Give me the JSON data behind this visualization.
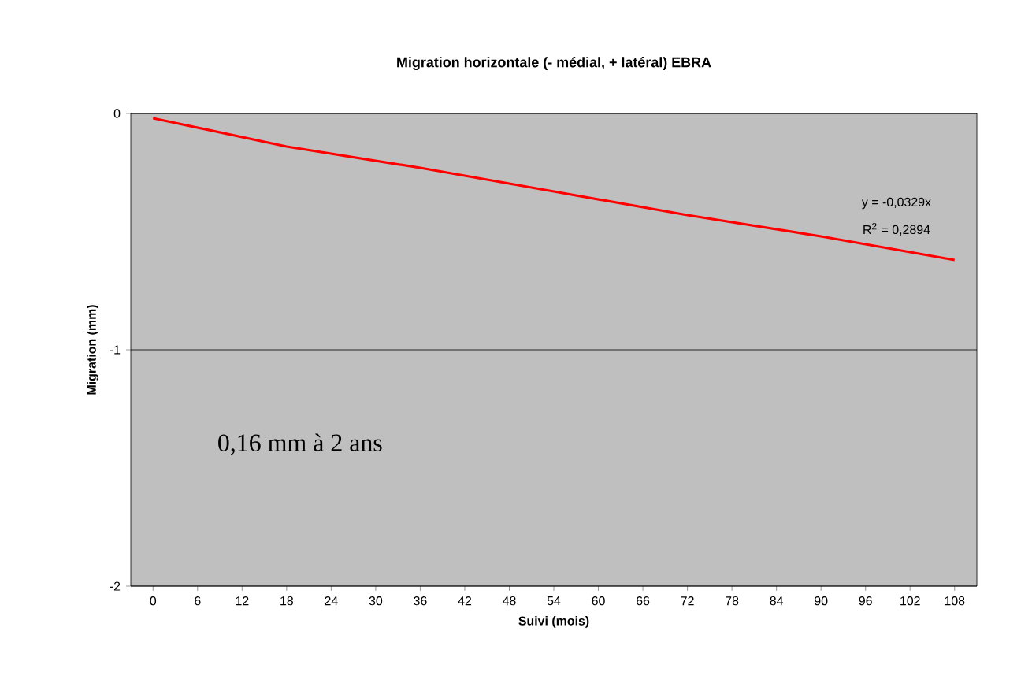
{
  "chart_data": {
    "type": "line",
    "title": "Migration horizontale (- médial, + latéral) EBRA",
    "xlabel": "Suivi (mois)",
    "ylabel": "Migration (mm)",
    "x": [
      0,
      18,
      36,
      54,
      72,
      90,
      108
    ],
    "series": [
      {
        "color": "#ff0000",
        "values": [
          -0.02,
          -0.14,
          -0.23,
          -0.33,
          -0.43,
          -0.52,
          -0.62
        ]
      }
    ],
    "xlim": [
      -3,
      111
    ],
    "xticks": [
      0,
      6,
      12,
      18,
      24,
      30,
      36,
      42,
      48,
      54,
      60,
      66,
      72,
      78,
      84,
      90,
      96,
      102,
      108
    ],
    "ylim": [
      -2,
      0
    ],
    "yticks": [
      -2,
      -1,
      0
    ],
    "grid": "y",
    "marker": "none",
    "line_style": "solid",
    "annotations": [
      "y = -0,0329x",
      "R$^{2}$ = 0,2894",
      "0,16 mm à 2 ans"
    ]
  }
}
